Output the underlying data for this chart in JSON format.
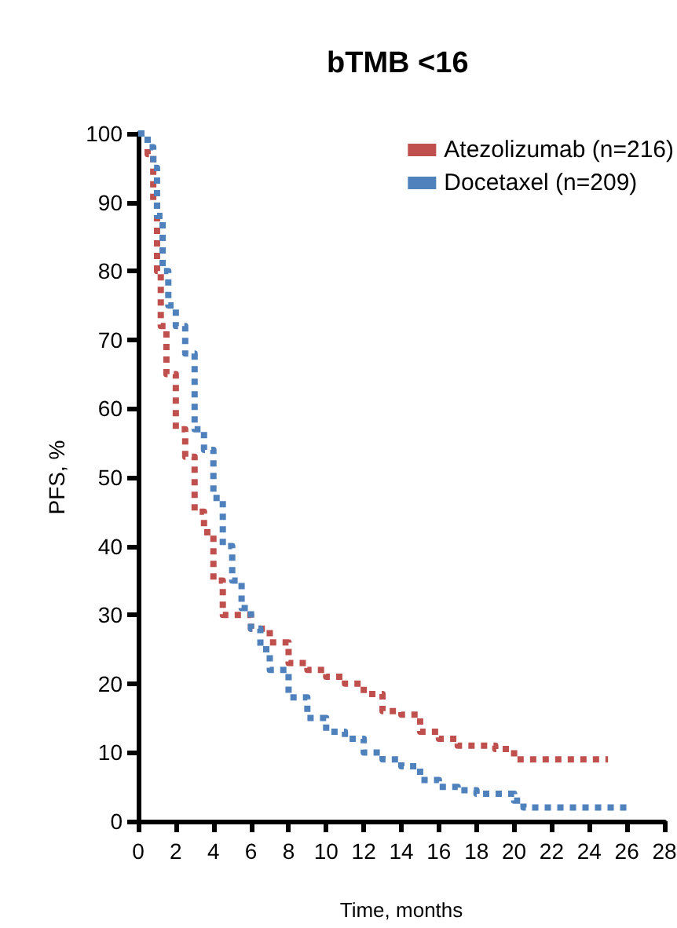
{
  "chart_data": {
    "type": "step",
    "title": "bTMB <16",
    "xlabel": "Time, months",
    "ylabel": "PFS, %",
    "xlim": [
      0,
      28
    ],
    "xticks": [
      0,
      2,
      4,
      6,
      8,
      10,
      12,
      14,
      16,
      18,
      20,
      22,
      24,
      26,
      28
    ],
    "ylim": [
      0,
      100
    ],
    "yticks": [
      0,
      10,
      20,
      30,
      40,
      50,
      60,
      70,
      80,
      90,
      100
    ],
    "grid": false,
    "legend": "top right",
    "line_style": "dotted",
    "marker": "none",
    "series": [
      {
        "name": "Atezolizumab (n=216)",
        "color": "#c0504d",
        "x": [
          0,
          0.5,
          0.8,
          1,
          1.2,
          1.5,
          2,
          2.5,
          3,
          3.5,
          4,
          4.5,
          6,
          7,
          8,
          9,
          10,
          11,
          12,
          13,
          14,
          15,
          16,
          17,
          19,
          20,
          25
        ],
        "values": [
          100,
          97,
          90,
          80,
          72,
          65,
          57,
          53,
          45,
          42,
          35,
          30,
          28,
          26,
          23,
          22,
          21,
          20,
          18.5,
          16,
          15.5,
          13,
          12,
          11,
          10.5,
          9,
          9
        ]
      },
      {
        "name": "Docetaxel (n=209)",
        "color": "#4f81bd",
        "x": [
          0,
          0.5,
          0.8,
          1,
          1.3,
          1.6,
          2,
          2.5,
          3,
          3.5,
          4,
          4.5,
          5,
          5.5,
          6,
          6.5,
          7,
          8,
          9,
          10,
          11,
          12,
          13,
          14,
          15,
          16,
          17,
          18,
          19,
          20,
          20.5,
          26
        ],
        "values": [
          100,
          98,
          95,
          88,
          80,
          75,
          72,
          68,
          57,
          54,
          47,
          40,
          35,
          31,
          28,
          25,
          22,
          18,
          15,
          13,
          12,
          10,
          9,
          8,
          6,
          5,
          4.5,
          4,
          4,
          3,
          2,
          2
        ]
      }
    ]
  }
}
